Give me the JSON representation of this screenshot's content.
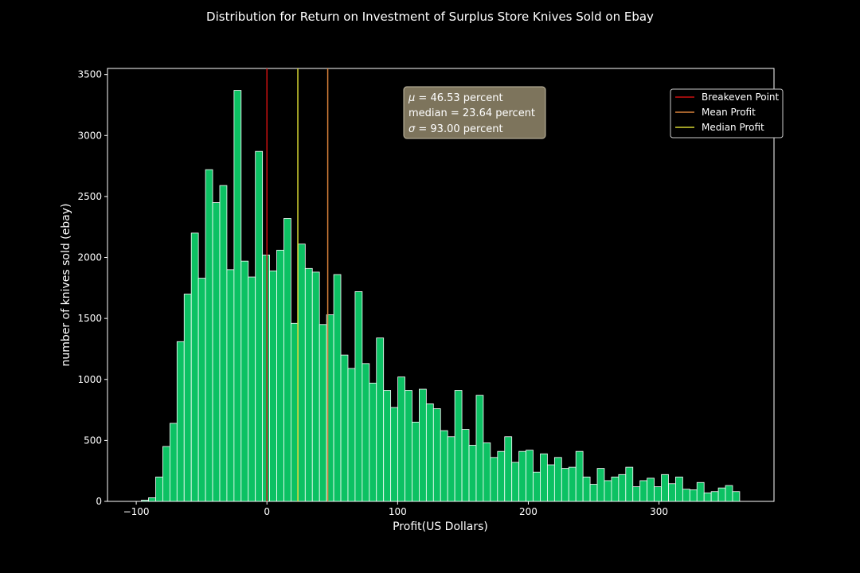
{
  "chart_data": {
    "type": "bar",
    "subtype": "histogram",
    "title": "Distribution for Return on Investment of Surplus Store Knives Sold on Ebay",
    "xlabel": "Profit(US Dollars)",
    "ylabel": "number of knives sold (ebay)",
    "xlim": [
      -122,
      388
    ],
    "ylim": [
      0,
      3550
    ],
    "xticks": [
      -100,
      0,
      100,
      200,
      300
    ],
    "xtick_labels": [
      "−100",
      "0",
      "100",
      "200",
      "300"
    ],
    "yticks": [
      0,
      500,
      1000,
      1500,
      2000,
      2500,
      3000,
      3500
    ],
    "ytick_labels": [
      "0",
      "500",
      "1000",
      "1500",
      "2000",
      "2500",
      "3000",
      "3500"
    ],
    "grid": false,
    "bins": {
      "start": -101.5,
      "width": 5.45,
      "counts": [
        0,
        10,
        30,
        200,
        450,
        640,
        1310,
        1700,
        2200,
        1830,
        2720,
        2450,
        2590,
        1900,
        3370,
        1970,
        1840,
        2870,
        2020,
        1890,
        2060,
        2320,
        1460,
        2110,
        1910,
        1880,
        1450,
        1530,
        1860,
        1200,
        1090,
        1720,
        1130,
        970,
        1340,
        910,
        770,
        1020,
        910,
        650,
        920,
        800,
        760,
        580,
        530,
        910,
        590,
        460,
        870,
        480,
        360,
        410,
        530,
        320,
        410,
        420,
        240,
        390,
        300,
        360,
        270,
        280,
        410,
        200,
        140,
        270,
        170,
        200,
        220,
        280,
        120,
        170,
        190,
        120,
        220,
        145,
        200,
        100,
        95,
        155,
        70,
        80,
        110,
        130,
        80,
        0
      ]
    },
    "reference_lines": [
      {
        "name": "Breakeven Point",
        "x": 0,
        "color": "#cc1111"
      },
      {
        "name": "Mean Profit",
        "x": 46.53,
        "color": "#d9823b"
      },
      {
        "name": "Median Profit",
        "x": 23.64,
        "color": "#d6d633"
      }
    ],
    "stats_box": [
      {
        "symbol": "μ",
        "text": " = 46.53 percent"
      },
      {
        "symbol": "",
        "text": "median = 23.64 percent"
      },
      {
        "symbol": "σ",
        "text": " = 93.00 percent"
      }
    ],
    "legend": {
      "placement": "top-right",
      "entries": [
        "Breakeven Point",
        "Mean Profit",
        "Median Profit"
      ]
    },
    "colors": {
      "background": "#000000",
      "bar_fill": "#0cc163",
      "bar_edge": "#ffffff",
      "axis": "#ffffff",
      "text": "#ffffff",
      "stats_box_fill": "#7d745c"
    }
  }
}
